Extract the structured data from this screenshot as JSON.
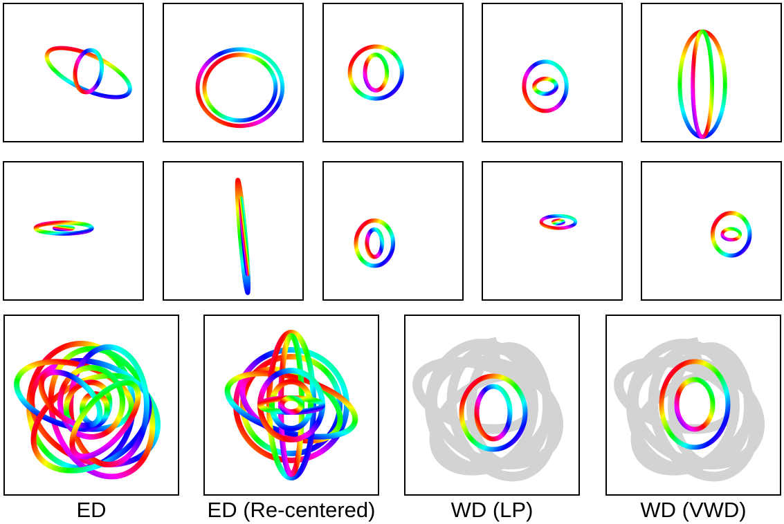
{
  "figure": {
    "rows": [
      {
        "panels": [
          "panel-r1-1",
          "panel-r1-2",
          "panel-r1-3",
          "panel-r1-4",
          "panel-r1-5"
        ]
      },
      {
        "panels": [
          "panel-r2-1",
          "panel-r2-2",
          "panel-r2-3",
          "panel-r2-4",
          "panel-r2-5"
        ]
      }
    ],
    "results": [
      {
        "label": "ED"
      },
      {
        "label": "ED (Re-centered)"
      },
      {
        "label": "WD (LP)"
      },
      {
        "label": "WD (VWD)"
      }
    ],
    "colors": {
      "hue_cycle": [
        "#ff0000",
        "#ffff00",
        "#00ff00",
        "#00ffff",
        "#0000ff",
        "#ff00ff",
        "#ff0000"
      ],
      "background_shapes": "#d3d3d3",
      "frame": "#000000"
    }
  }
}
